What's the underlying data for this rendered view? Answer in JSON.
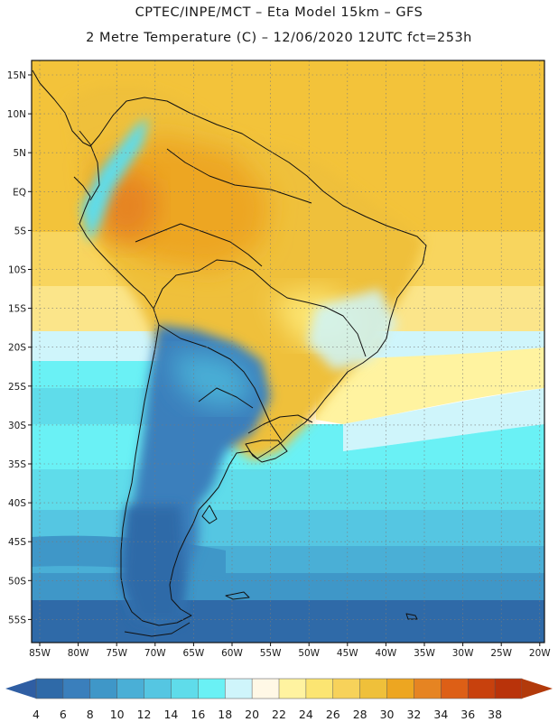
{
  "header": {
    "line1": "CPTEC/INPE/MCT –  Eta Model 15km – GFS",
    "line2": "2 Metre Temperature (C) – 12/06/2020 12UTC fct=253h"
  },
  "map": {
    "lat_labels": [
      "15N",
      "10N",
      "5N",
      "EQ",
      "5S",
      "10S",
      "15S",
      "20S",
      "25S",
      "30S",
      "35S",
      "40S",
      "45S",
      "50S",
      "55S"
    ],
    "lon_labels": [
      "85W",
      "80W",
      "75W",
      "70W",
      "65W",
      "60W",
      "55W",
      "50W",
      "45W",
      "40W",
      "35W",
      "30W",
      "25W",
      "20W"
    ]
  },
  "legend": {
    "levels": [
      "4",
      "6",
      "8",
      "10",
      "12",
      "14",
      "16",
      "18",
      "20",
      "22",
      "24",
      "26",
      "28",
      "30",
      "32",
      "34",
      "36",
      "38"
    ],
    "colors": [
      "#2f6aa8",
      "#3a7fbc",
      "#3f97c8",
      "#4aafd6",
      "#55c6e2",
      "#5fdcea",
      "#6af1f5",
      "#cff5fb",
      "#fff8e6",
      "#fff3a0",
      "#fce572",
      "#f7d25a",
      "#efc03a",
      "#eda621",
      "#e68422",
      "#dd5f16",
      "#c8410d",
      "#b9330a"
    ],
    "low_color": "#2f5ea3",
    "high_color": "#b23a0b"
  }
}
